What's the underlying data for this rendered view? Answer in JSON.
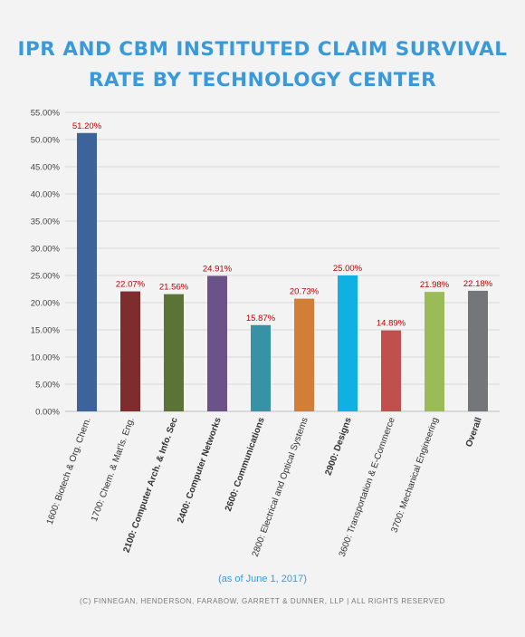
{
  "title_lines": [
    "IPR AND CBM INSTITUTED CLAIM SURVIVAL",
    "RATE BY TECHNOLOGY CENTER"
  ],
  "note": "(as of June 1, 2017)",
  "copyright": "(C) FINNEGAN, HENDERSON, FARABOW, GARRETT & DUNNER, LLP | ALL RIGHTS RESERVED",
  "chart_data": {
    "type": "bar",
    "categories": [
      "1600: Biotech & Org. Chem.",
      "1700: Chem. & Mat'ls. Eng.",
      "2100: Computer Arch. & Info. Sec",
      "2400: Computer Networks",
      "2600: Communications",
      "2800: Electrical and Optical Systems",
      "2900: Designs",
      "3600: Transportation & E-Commerce",
      "3700: Mechanical Engineering",
      "Overall"
    ],
    "bold_categories": [
      false,
      false,
      true,
      true,
      true,
      false,
      true,
      false,
      false,
      true
    ],
    "values": [
      51.2,
      22.07,
      21.56,
      24.91,
      15.87,
      20.73,
      25.0,
      14.89,
      21.98,
      22.18
    ],
    "data_labels": [
      "51.20%",
      "22.07%",
      "21.56%",
      "24.91%",
      "15.87%",
      "20.73%",
      "25.00%",
      "14.89%",
      "21.98%",
      "22.18%"
    ],
    "colors": [
      "#3c639a",
      "#7f2c2e",
      "#5b7337",
      "#6b5289",
      "#3792a6",
      "#d27e36",
      "#10b0e2",
      "#c0504d",
      "#9bbb59",
      "#747679"
    ],
    "ylim": [
      0,
      55
    ],
    "yticks": [
      0,
      5,
      10,
      15,
      20,
      25,
      30,
      35,
      40,
      45,
      50,
      55
    ],
    "ytick_labels": [
      "0.00%",
      "5.00%",
      "10.00%",
      "15.00%",
      "20.00%",
      "25.00%",
      "30.00%",
      "35.00%",
      "40.00%",
      "45.00%",
      "50.00%",
      "55.00%"
    ],
    "label_color": "#c00000",
    "grid": true
  }
}
